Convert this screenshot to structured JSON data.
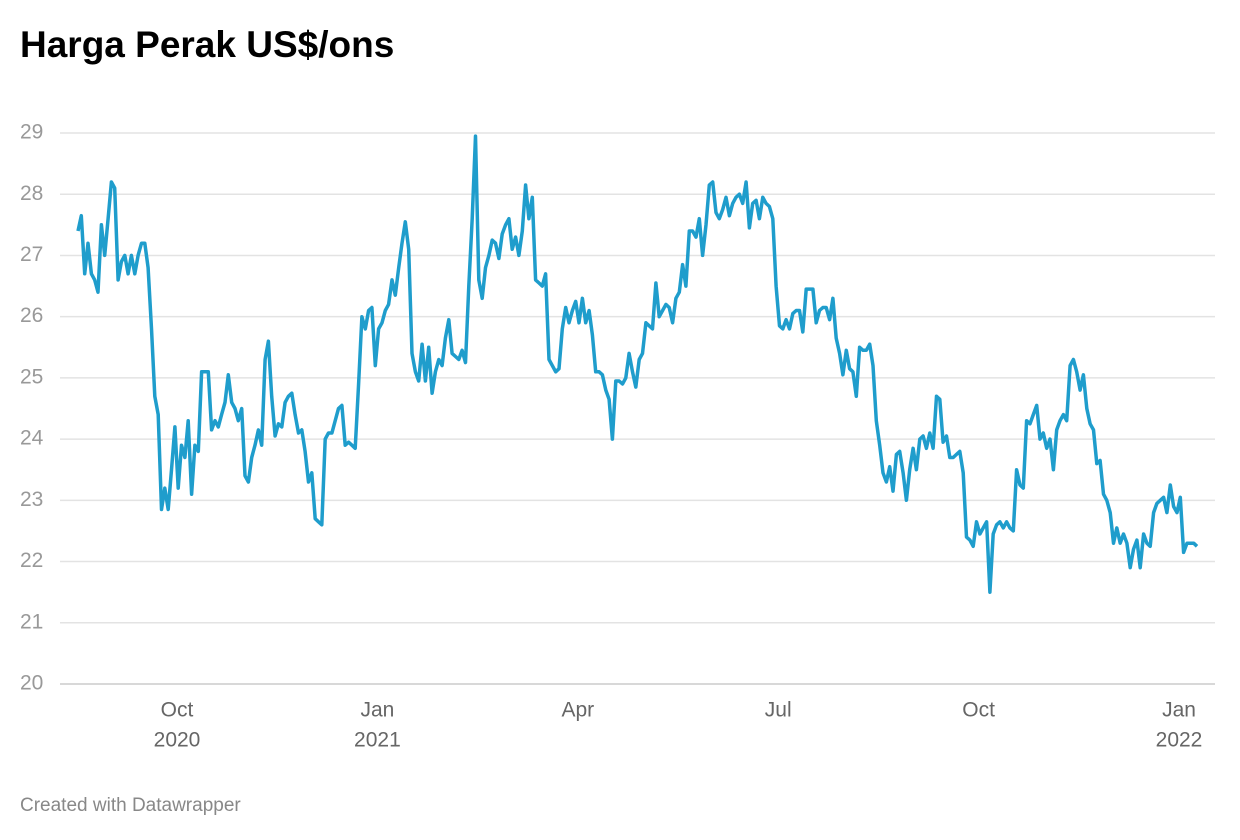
{
  "chart_data": {
    "type": "line",
    "title": "Harga Perak US$/ons",
    "footer": "Created with Datawrapper",
    "color": "#1f9dcc",
    "grid": true,
    "ylim": [
      20,
      29
    ],
    "yticks": [
      20,
      21,
      22,
      23,
      24,
      25,
      26,
      27,
      28,
      29
    ],
    "xlim": [
      "2020-08",
      "2022-01"
    ],
    "xticks": [
      {
        "value": "2020-10",
        "label": "Oct",
        "year": "2020"
      },
      {
        "value": "2021-01",
        "label": "Jan",
        "year": "2021"
      },
      {
        "value": "2021-04",
        "label": "Apr"
      },
      {
        "value": "2021-07",
        "label": "Jul"
      },
      {
        "value": "2021-10",
        "label": "Oct"
      },
      {
        "value": "2022-01",
        "label": "Jan",
        "year": "2022"
      }
    ],
    "values": [
      27.4,
      27.65,
      26.7,
      27.2,
      26.7,
      26.6,
      26.4,
      27.5,
      27.0,
      27.6,
      28.2,
      28.1,
      26.6,
      26.9,
      27.0,
      26.7,
      27.0,
      26.7,
      27.0,
      27.2,
      27.2,
      26.8,
      25.8,
      24.7,
      24.4,
      22.85,
      23.2,
      22.85,
      23.5,
      24.2,
      23.2,
      23.9,
      23.7,
      24.3,
      23.1,
      23.9,
      23.8,
      25.1,
      25.1,
      25.1,
      24.15,
      24.3,
      24.2,
      24.4,
      24.6,
      25.05,
      24.6,
      24.5,
      24.3,
      24.5,
      23.4,
      23.3,
      23.7,
      23.9,
      24.15,
      23.9,
      25.3,
      25.6,
      24.7,
      24.05,
      24.25,
      24.2,
      24.6,
      24.7,
      24.75,
      24.4,
      24.1,
      24.15,
      23.8,
      23.3,
      23.45,
      22.7,
      22.65,
      22.6,
      24.0,
      24.1,
      24.1,
      24.3,
      24.5,
      24.55,
      23.9,
      23.95,
      23.9,
      23.85,
      24.9,
      26.0,
      25.8,
      26.1,
      26.15,
      25.2,
      25.8,
      25.9,
      26.1,
      26.2,
      26.6,
      26.35,
      26.8,
      27.2,
      27.55,
      27.1,
      25.4,
      25.1,
      24.95,
      25.55,
      24.95,
      25.5,
      24.75,
      25.1,
      25.3,
      25.2,
      25.65,
      25.95,
      25.4,
      25.35,
      25.3,
      25.45,
      25.25,
      26.5,
      27.6,
      28.95,
      26.6,
      26.3,
      26.8,
      27.0,
      27.25,
      27.2,
      26.95,
      27.35,
      27.5,
      27.6,
      27.1,
      27.3,
      27.0,
      27.4,
      28.15,
      27.6,
      27.95,
      26.6,
      26.55,
      26.5,
      26.7,
      25.3,
      25.2,
      25.1,
      25.15,
      25.8,
      26.15,
      25.9,
      26.1,
      26.25,
      25.9,
      26.3,
      25.9,
      26.1,
      25.7,
      25.1,
      25.1,
      25.05,
      24.8,
      24.65,
      24.0,
      24.95,
      24.95,
      24.9,
      25.0,
      25.4,
      25.1,
      24.85,
      25.3,
      25.4,
      25.9,
      25.85,
      25.8,
      26.55,
      26.0,
      26.1,
      26.2,
      26.15,
      25.9,
      26.3,
      26.4,
      26.85,
      26.5,
      27.4,
      27.4,
      27.3,
      27.6,
      27.0,
      27.5,
      28.15,
      28.2,
      27.7,
      27.6,
      27.75,
      27.95,
      27.65,
      27.85,
      27.95,
      28.0,
      27.85,
      28.2,
      27.45,
      27.85,
      27.9,
      27.6,
      27.95,
      27.85,
      27.8,
      27.6,
      26.5,
      25.85,
      25.8,
      25.95,
      25.8,
      26.05,
      26.1,
      26.1,
      25.75,
      26.45,
      26.45,
      26.45,
      25.9,
      26.1,
      26.15,
      26.15,
      25.95,
      26.3,
      25.65,
      25.4,
      25.05,
      25.45,
      25.15,
      25.1,
      24.7,
      25.5,
      25.45,
      25.45,
      25.55,
      25.2,
      24.3,
      23.9,
      23.45,
      23.3,
      23.55,
      23.15,
      23.75,
      23.8,
      23.45,
      23.0,
      23.5,
      23.85,
      23.5,
      24.0,
      24.05,
      23.85,
      24.1,
      23.85,
      24.7,
      24.65,
      23.95,
      24.05,
      23.7,
      23.7,
      23.75,
      23.8,
      23.45,
      22.4,
      22.35,
      22.25,
      22.65,
      22.45,
      22.55,
      22.65,
      21.5,
      22.45,
      22.6,
      22.65,
      22.55,
      22.65,
      22.55,
      22.5,
      23.5,
      23.25,
      23.2,
      24.3,
      24.25,
      24.4,
      24.55,
      24.0,
      24.1,
      23.85,
      24.0,
      23.5,
      24.15,
      24.3,
      24.4,
      24.3,
      25.2,
      25.3,
      25.1,
      24.8,
      25.05,
      24.5,
      24.25,
      24.15,
      23.6,
      23.65,
      23.1,
      23.0,
      22.8,
      22.3,
      22.55,
      22.3,
      22.45,
      22.3,
      21.9,
      22.2,
      22.35,
      21.9,
      22.45,
      22.3,
      22.25,
      22.8,
      22.95,
      23.0,
      23.05,
      22.8,
      23.25,
      22.9,
      22.8,
      23.05,
      22.15,
      22.3,
      22.3,
      22.3,
      22.25
    ]
  }
}
